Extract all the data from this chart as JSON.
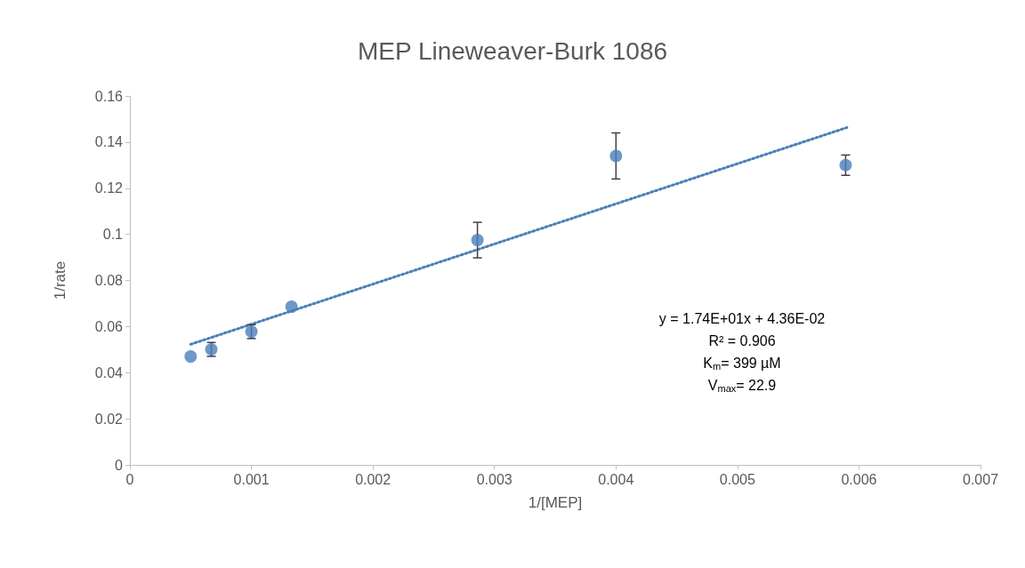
{
  "chart_data": {
    "type": "scatter",
    "title": "MEP Lineweaver-Burk 1086",
    "xlabel": "1/[MEP]",
    "ylabel": "1/rate",
    "xlim": [
      0,
      0.007
    ],
    "xticks": [
      0,
      0.001,
      0.002,
      0.003,
      0.004,
      0.005,
      0.006,
      0.007
    ],
    "ylim": [
      0,
      0.16
    ],
    "yticks": [
      0,
      0.02,
      0.04,
      0.06,
      0.08,
      0.1,
      0.12,
      0.14,
      0.16
    ],
    "marker": "circle",
    "series": [
      {
        "type": "scatter",
        "color": "#4a7ebb",
        "x": [
          0.0005,
          0.00067,
          0.001,
          0.00133,
          0.00286,
          0.004,
          0.00589
        ],
        "values": [
          0.047,
          0.0501,
          0.0578,
          0.0686,
          0.0975,
          0.134,
          0.13
        ],
        "errors": [
          null,
          0.003,
          0.003,
          null,
          0.0077,
          0.01,
          0.0044
        ]
      },
      {
        "type": "line",
        "color": "#4a7ebb",
        "line_style": "dotted",
        "marker": "none",
        "x": [
          0.0005,
          0.0059
        ],
        "values": [
          0.0523,
          0.1463
        ]
      }
    ],
    "annotations": [
      "y = 1.74E+01x + 4.36E-02",
      "R² = 0.906",
      "K$_{m}$= 399 µM",
      "V$_{max}$= 22.9"
    ]
  }
}
